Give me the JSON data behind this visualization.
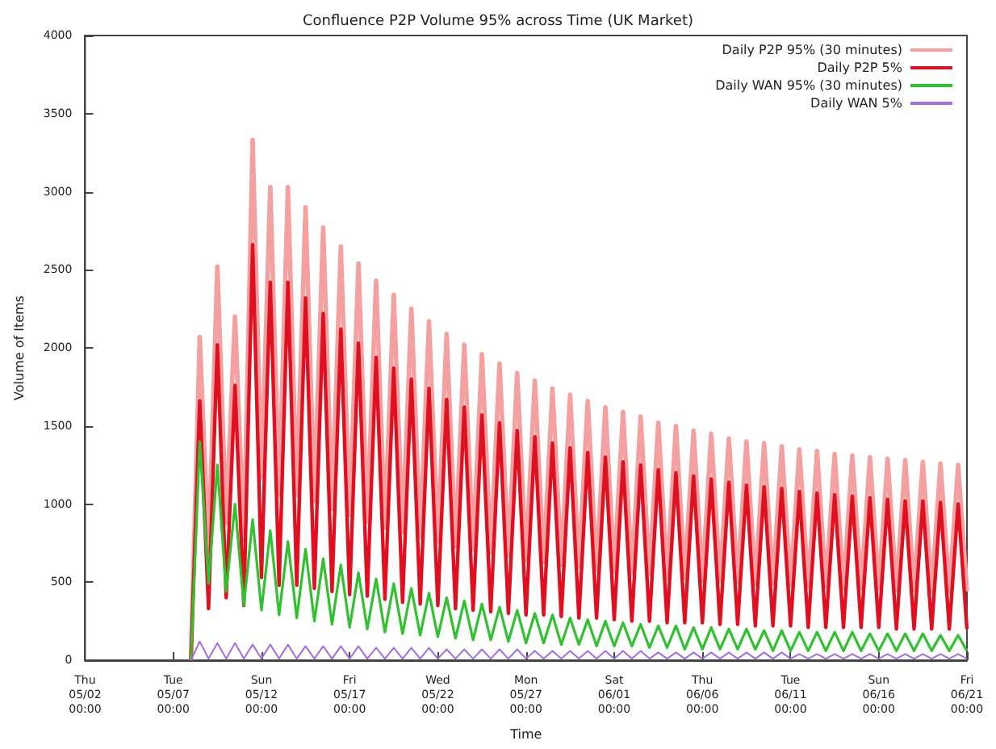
{
  "chart_data": {
    "type": "line",
    "title": "Confluence P2P Volume 95% across Time (UK Market)",
    "xlabel": "Time",
    "ylabel": "Volume of Items",
    "categories": [
      "Thu\n05/02\n00:00",
      null,
      null,
      null,
      null,
      null,
      null,
      null,
      null,
      null,
      "Tue\n05/07\n00:00",
      null,
      null,
      null,
      null,
      null,
      null,
      null,
      null,
      null,
      "Sun\n05/12\n00:00",
      null,
      null,
      null,
      null,
      null,
      null,
      null,
      null,
      null,
      "Fri\n05/17\n00:00",
      null,
      null,
      null,
      null,
      null,
      null,
      null,
      null,
      null,
      "Wed\n05/22\n00:00",
      null,
      null,
      null,
      null,
      null,
      null,
      null,
      null,
      null,
      "Mon\n05/27\n00:00",
      null,
      null,
      null,
      null,
      null,
      null,
      null,
      null,
      null,
      "Sat\n06/01\n00:00",
      null,
      null,
      null,
      null,
      null,
      null,
      null,
      null,
      null,
      "Thu\n06/06\n00:00",
      null,
      null,
      null,
      null,
      null,
      null,
      null,
      null,
      null,
      "Tue\n06/11\n00:00",
      null,
      null,
      null,
      null,
      null,
      null,
      null,
      null,
      null,
      "Sun\n06/16\n00:00",
      null,
      null,
      null,
      null,
      null,
      null,
      null,
      null,
      null,
      "Fri\n06/21\n00:00"
    ],
    "series": [
      {
        "name": "Daily P2P 95% (30 minutes)",
        "color": "#f4a0a0",
        "values": [
          null,
          null,
          null,
          null,
          null,
          null,
          null,
          null,
          null,
          null,
          null,
          null,
          0,
          2070,
          700,
          2520,
          880,
          2200,
          770,
          3330,
          1170,
          3030,
          1060,
          3030,
          1060,
          2900,
          1020,
          2770,
          970,
          2650,
          930,
          2540,
          890,
          2430,
          850,
          2340,
          820,
          2250,
          790,
          2170,
          760,
          2090,
          730,
          2020,
          710,
          1960,
          690,
          1900,
          670,
          1840,
          640,
          1790,
          630,
          1740,
          610,
          1700,
          600,
          1660,
          580,
          1620,
          570,
          1590,
          560,
          1560,
          550,
          1520,
          530,
          1500,
          530,
          1470,
          510,
          1450,
          510,
          1420,
          500,
          1400,
          490,
          1390,
          490,
          1370,
          480,
          1350,
          470,
          1340,
          470,
          1320,
          460,
          1310,
          460,
          1300,
          460,
          1290,
          450,
          1280,
          450,
          1270,
          440,
          1260,
          440,
          1250,
          440
        ]
      },
      {
        "name": "Daily P2P 5%",
        "color": "#e01020",
        "values": [
          null,
          null,
          null,
          null,
          null,
          null,
          null,
          null,
          null,
          null,
          null,
          null,
          0,
          1660,
          330,
          2020,
          400,
          1760,
          350,
          2660,
          530,
          2420,
          480,
          2420,
          480,
          2320,
          460,
          2220,
          440,
          2120,
          420,
          2030,
          410,
          1940,
          390,
          1870,
          370,
          1800,
          360,
          1740,
          350,
          1670,
          330,
          1620,
          320,
          1570,
          310,
          1520,
          300,
          1470,
          290,
          1430,
          290,
          1390,
          280,
          1360,
          270,
          1330,
          270,
          1300,
          260,
          1270,
          250,
          1250,
          250,
          1220,
          240,
          1200,
          240,
          1180,
          240,
          1160,
          230,
          1140,
          230,
          1120,
          220,
          1110,
          220,
          1100,
          220,
          1080,
          210,
          1070,
          210,
          1060,
          210,
          1050,
          210,
          1040,
          210,
          1030,
          200,
          1020,
          200,
          1020,
          200,
          1010,
          200,
          1000,
          200
        ]
      },
      {
        "name": "Daily WAN 95% (30 minutes)",
        "color": "#30c030",
        "values": [
          null,
          null,
          null,
          null,
          null,
          null,
          null,
          null,
          null,
          null,
          null,
          null,
          0,
          1400,
          490,
          1250,
          440,
          1000,
          350,
          900,
          320,
          830,
          290,
          760,
          270,
          710,
          250,
          650,
          230,
          610,
          210,
          560,
          200,
          520,
          180,
          490,
          170,
          460,
          160,
          430,
          150,
          400,
          140,
          380,
          130,
          360,
          130,
          340,
          120,
          320,
          110,
          300,
          110,
          290,
          100,
          270,
          100,
          260,
          90,
          250,
          90,
          240,
          90,
          230,
          80,
          220,
          80,
          220,
          70,
          210,
          70,
          210,
          70,
          200,
          70,
          200,
          70,
          190,
          60,
          190,
          60,
          180,
          60,
          180,
          60,
          180,
          60,
          180,
          60,
          170,
          60,
          170,
          60,
          170,
          60,
          170,
          60,
          160,
          60,
          160,
          60
        ]
      },
      {
        "name": "Daily WAN 5%",
        "color": "#a070e0",
        "values": [
          null,
          null,
          null,
          null,
          null,
          null,
          null,
          null,
          null,
          null,
          null,
          null,
          0,
          120,
          10,
          110,
          10,
          110,
          10,
          100,
          10,
          100,
          10,
          100,
          10,
          90,
          10,
          90,
          10,
          90,
          10,
          90,
          10,
          80,
          10,
          80,
          10,
          80,
          10,
          80,
          10,
          70,
          10,
          70,
          10,
          70,
          10,
          70,
          10,
          70,
          10,
          60,
          10,
          60,
          10,
          60,
          10,
          60,
          10,
          60,
          10,
          60,
          10,
          60,
          10,
          50,
          10,
          50,
          10,
          50,
          10,
          50,
          10,
          50,
          10,
          50,
          10,
          50,
          10,
          50,
          10,
          40,
          10,
          40,
          10,
          40,
          10,
          40,
          10,
          40,
          10,
          40,
          10,
          40,
          10,
          40,
          10,
          40,
          10,
          40,
          10
        ]
      }
    ],
    "ylim": [
      0,
      4000
    ],
    "yticks": [
      0,
      500,
      1000,
      1500,
      2000,
      2500,
      3000,
      3500,
      4000
    ],
    "grid": false,
    "legend": "top right",
    "marker": "none",
    "line_style": "solid"
  }
}
